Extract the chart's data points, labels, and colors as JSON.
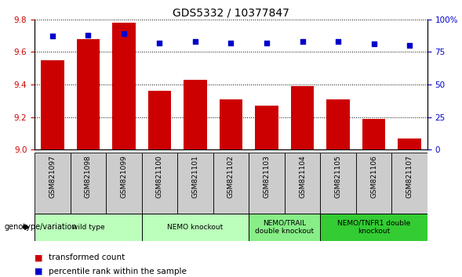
{
  "title": "GDS5332 / 10377847",
  "samples": [
    "GSM821097",
    "GSM821098",
    "GSM821099",
    "GSM821100",
    "GSM821101",
    "GSM821102",
    "GSM821103",
    "GSM821104",
    "GSM821105",
    "GSM821106",
    "GSM821107"
  ],
  "transformed_counts": [
    9.55,
    9.68,
    9.78,
    9.36,
    9.43,
    9.31,
    9.27,
    9.39,
    9.31,
    9.19,
    9.07
  ],
  "percentile_ranks": [
    87,
    88,
    89,
    82,
    83,
    82,
    82,
    83,
    83,
    81,
    80
  ],
  "ylim_left": [
    9.0,
    9.8
  ],
  "ylim_right": [
    0,
    100
  ],
  "yticks_left": [
    9.0,
    9.2,
    9.4,
    9.6,
    9.8
  ],
  "yticks_right": [
    0,
    25,
    50,
    75,
    100
  ],
  "bar_color": "#cc0000",
  "dot_color": "#0000cc",
  "bar_bottom": 9.0,
  "groups": [
    {
      "label": "wild type",
      "start": 0,
      "end": 2,
      "color": "#bbffbb"
    },
    {
      "label": "NEMO knockout",
      "start": 3,
      "end": 5,
      "color": "#bbffbb"
    },
    {
      "label": "NEMO/TRAIL\ndouble knockout",
      "start": 6,
      "end": 7,
      "color": "#88ee88"
    },
    {
      "label": "NEMO/TNFR1 double\nknockout",
      "start": 8,
      "end": 10,
      "color": "#33cc33"
    }
  ],
  "legend_bar_label": "transformed count",
  "legend_dot_label": "percentile rank within the sample",
  "tick_label_color_left": "#cc0000",
  "tick_label_color_right": "#0000cc",
  "sample_bg_color": "#cccccc",
  "group_row_label": "genotype/variation"
}
